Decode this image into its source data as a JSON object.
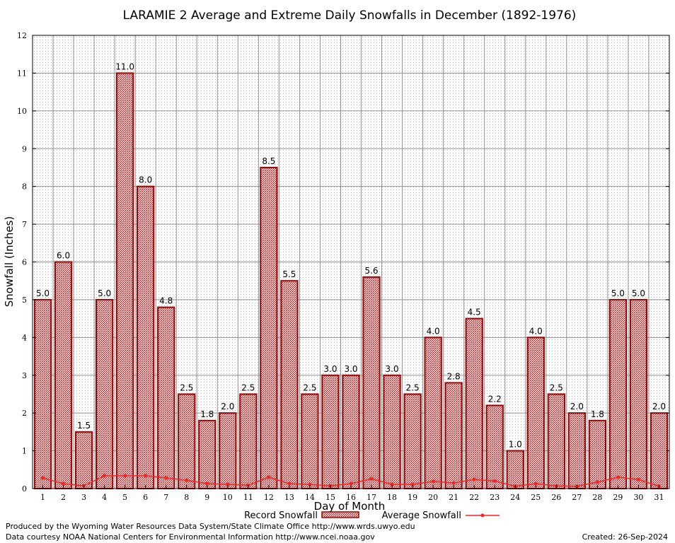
{
  "chart_data": {
    "type": "bar",
    "title": "LARAMIE 2 Average and Extreme Daily Snowfalls in December (1892-1976)",
    "xlabel": "Day of Month",
    "ylabel": "Snowfall (Inches)",
    "ylim": [
      0,
      12
    ],
    "yticks": [
      0,
      1,
      2,
      3,
      4,
      5,
      6,
      7,
      8,
      9,
      10,
      11,
      12
    ],
    "grid": true,
    "categories": [
      "1",
      "2",
      "3",
      "4",
      "5",
      "6",
      "7",
      "8",
      "9",
      "10",
      "11",
      "12",
      "13",
      "14",
      "15",
      "16",
      "17",
      "18",
      "19",
      "20",
      "21",
      "22",
      "23",
      "24",
      "25",
      "26",
      "27",
      "28",
      "29",
      "30",
      "31"
    ],
    "series": [
      {
        "name": "Record Snowfall",
        "type": "bar",
        "color": "#a00000",
        "values": [
          5.0,
          6.0,
          1.5,
          5.0,
          11.0,
          8.0,
          4.8,
          2.5,
          1.8,
          2.0,
          2.5,
          8.5,
          5.5,
          2.5,
          3.0,
          3.0,
          5.6,
          3.0,
          2.5,
          4.0,
          2.8,
          4.5,
          2.2,
          1.0,
          4.0,
          2.5,
          2.0,
          1.8,
          5.0,
          5.0,
          2.0
        ],
        "labels": [
          "5.0",
          "6.0",
          "1.5",
          "5.0",
          "11.0",
          "8.0",
          "4.8",
          "2.5",
          "1.8",
          "2.0",
          "2.5",
          "8.5",
          "5.5",
          "2.5",
          "3.0",
          "3.0",
          "5.6",
          "3.0",
          "2.5",
          "4.0",
          "2.8",
          "4.5",
          "2.2",
          "1.0",
          "4.0",
          "2.5",
          "2.0",
          "1.8",
          "5.0",
          "5.0",
          "2.0"
        ]
      },
      {
        "name": "Average Snowfall",
        "type": "line",
        "color": "#ff2020",
        "values": [
          0.28,
          0.13,
          0.07,
          0.34,
          0.34,
          0.34,
          0.28,
          0.22,
          0.13,
          0.11,
          0.09,
          0.3,
          0.13,
          0.11,
          0.07,
          0.13,
          0.26,
          0.11,
          0.11,
          0.19,
          0.15,
          0.24,
          0.2,
          0.06,
          0.13,
          0.07,
          0.06,
          0.17,
          0.3,
          0.24,
          0.06
        ]
      }
    ],
    "legend_position": "bottom-center"
  },
  "footer": {
    "line1": "Produced by the Wyoming Water Resources Data System/State Climate Office http://www.wrds.uwyo.edu",
    "line2": "Data courtesy NOAA National Centers for Environmental Information http://www.ncei.noaa.gov",
    "created": "Created:  26-Sep-2024"
  }
}
